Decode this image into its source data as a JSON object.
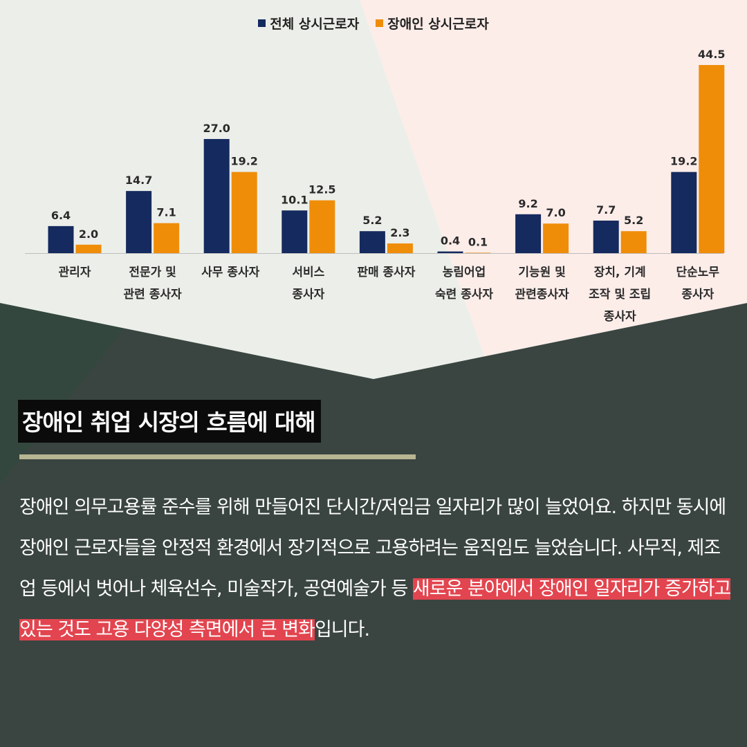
{
  "colors": {
    "series_all": "#152a5e",
    "series_disabled": "#ef8d09",
    "highlight": "#e2454f",
    "underline": "#b8b592",
    "dark_bg": "#3a4541"
  },
  "chart_data": {
    "type": "bar",
    "categories": [
      [
        "관리자"
      ],
      [
        "전문가 및",
        "관련 종사자"
      ],
      [
        "사무 종사자"
      ],
      [
        "서비스",
        "종사자"
      ],
      [
        "판매 종사자"
      ],
      [
        "농림어업",
        "숙련 종사자"
      ],
      [
        "기능원 및",
        "관련종사자"
      ],
      [
        "장치, 기계",
        "조작 및 조립",
        "종사자"
      ],
      [
        "단순노무",
        "종사자"
      ]
    ],
    "series": [
      {
        "name": "전체 상시근로자",
        "values": [
          6.4,
          14.7,
          27.0,
          10.1,
          5.2,
          0.4,
          9.2,
          7.7,
          19.2
        ]
      },
      {
        "name": "장애인 상시근로자",
        "values": [
          2.0,
          7.1,
          19.2,
          12.5,
          2.3,
          0.1,
          7.0,
          5.2,
          44.5
        ]
      }
    ],
    "ylim": [
      0,
      44.5
    ],
    "grid": false,
    "legend": "top-center"
  },
  "article": {
    "title": "장애인 취업 시장의 흐름에 대해",
    "paragraph_plain": "장애인 의무고용률 준수를 위해 만들어진 단시간/저임금 일자리가 많이 늘었어요. 하지만 동시에 장애인 근로자들을 안정적 환경에서 장기적으로 고용하려는 움직임도 늘었습니다. 사무직, 제조업 등에서 벗어나 체육선수, 미술작가, 공연예술가 등 ",
    "paragraph_highlight": "새로운 분야에서 장애인 일자리가 증가하고 있는 것도 고용 다양성 측면에서 큰 변화",
    "paragraph_end": "입니다."
  }
}
